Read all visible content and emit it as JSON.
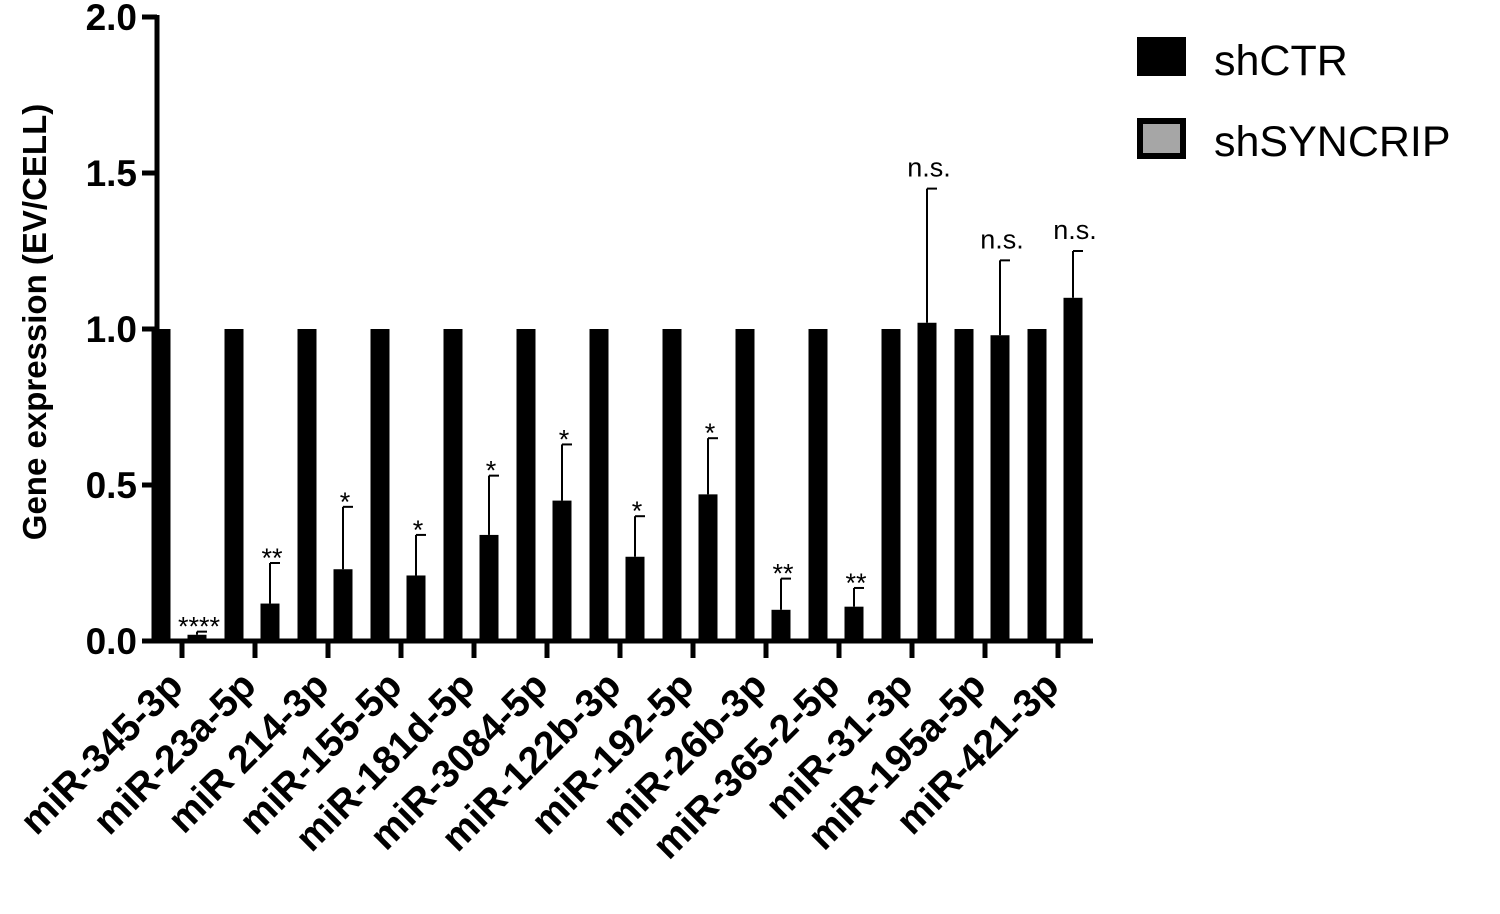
{
  "chart_data": {
    "type": "bar",
    "ylabel": "Gene expression (EV/CELL)",
    "xlabel": "",
    "ylim": [
      0,
      2.0
    ],
    "yticks": [
      0.0,
      0.5,
      1.0,
      1.5,
      2.0
    ],
    "ytick_labels": [
      "0.0",
      "0.5",
      "1.0",
      "1.5",
      "2.0"
    ],
    "legend_position": "top-right",
    "grid": false,
    "categories": [
      "miR-345-3p",
      "miR-23a-5p",
      "miR 214-3p",
      "miR-155-5p",
      "miR-181d-5p",
      "miR-3084-5p",
      "miR-122b-3p",
      "miR-192-5p",
      "miR-26b-3p",
      "miR-365-2-5p",
      "miR-31-3p",
      "miR-195a-5p",
      "miR-421-3p"
    ],
    "series": [
      {
        "name": "shCTR",
        "color": "#000000",
        "values": [
          1.0,
          1.0,
          1.0,
          1.0,
          1.0,
          1.0,
          1.0,
          1.0,
          1.0,
          1.0,
          1.0,
          1.0,
          1.0
        ]
      },
      {
        "name": "shSYNCRIP",
        "color": "#000000",
        "legend_color": "#a6a6a6",
        "values": [
          0.02,
          0.12,
          0.23,
          0.21,
          0.34,
          0.45,
          0.27,
          0.47,
          0.1,
          0.11,
          1.02,
          0.98,
          1.1
        ],
        "errors": [
          0.01,
          0.13,
          0.2,
          0.13,
          0.19,
          0.18,
          0.13,
          0.18,
          0.1,
          0.06,
          0.43,
          0.24,
          0.15
        ]
      }
    ],
    "significance": [
      "****",
      "**",
      "*",
      "*",
      "*",
      "*",
      "*",
      "*",
      "**",
      "**",
      "n.s.",
      "n.s.",
      "n.s."
    ]
  }
}
